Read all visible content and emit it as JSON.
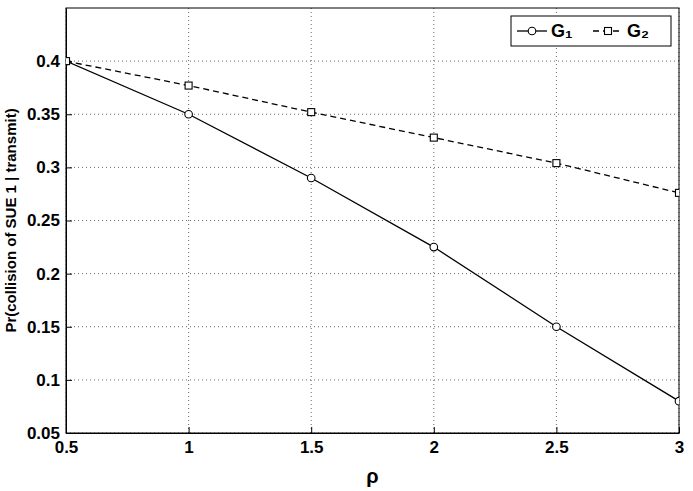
{
  "chart_data": {
    "type": "line",
    "x_label": "ρ",
    "y_label": "Pr(collision of SUE 1 | transmit)",
    "x": [
      0.5,
      1,
      1.5,
      2,
      2.5,
      3
    ],
    "series": [
      {
        "name": "G₁",
        "color": "#000000",
        "marker": "circle",
        "line_style": "solid",
        "values": [
          0.4,
          0.35,
          0.29,
          0.225,
          0.15,
          0.08
        ]
      },
      {
        "name": "G₂",
        "color": "#000000",
        "marker": "square",
        "line_style": "dashed",
        "values": [
          0.4,
          0.377,
          0.352,
          0.328,
          0.304,
          0.276
        ]
      }
    ],
    "xlim": [
      0.5,
      3
    ],
    "xticks": [
      0.5,
      1,
      1.5,
      2,
      2.5,
      3
    ],
    "ylim": [
      0.05,
      0.45
    ],
    "yticks": [
      0.05,
      0.1,
      0.15,
      0.2,
      0.25,
      0.3,
      0.35,
      0.4
    ],
    "grid": true,
    "legend": "northeast"
  }
}
